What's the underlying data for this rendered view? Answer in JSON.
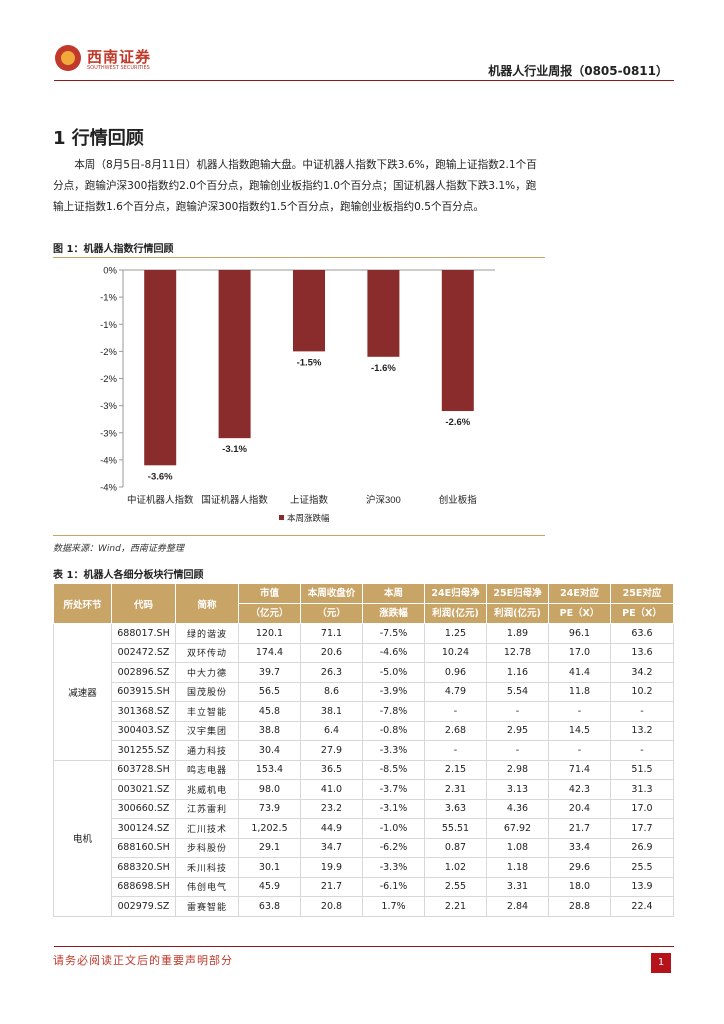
{
  "header": {
    "logo_cn": "西南证券",
    "logo_en": "SOUTHWEST SECURITIES",
    "report_title": "机器人行业周报（0805-0811）"
  },
  "section": {
    "title": "1 行情回顾",
    "paragraph": "本周（8月5日-8月11日）机器人指数跑输大盘。中证机器人指数下跌3.6%，跑输上证指数2.1个百分点，跑输沪深300指数约2.0个百分点，跑输创业板指约1.0个百分点；国证机器人指数下跌3.1%，跑输上证指数1.6个百分点，跑输沪深300指数约1.5个百分点，跑输创业板指约0.5个百分点。"
  },
  "figure": {
    "title": "图 1：机器人指数行情回顾",
    "source": "数据来源：Wind，西南证券整理"
  },
  "chart_data": {
    "type": "bar",
    "categories": [
      "中证机器人指数",
      "国证机器人指数",
      "上证指数",
      "沪深300",
      "创业板指"
    ],
    "values": [
      -3.6,
      -3.1,
      -1.5,
      -1.6,
      -2.6
    ],
    "data_labels": [
      "-3.6%",
      "-3.1%",
      "-1.5%",
      "-1.6%",
      "-2.6%"
    ],
    "series": [
      {
        "name": "本周涨跌幅",
        "values": [
          -3.6,
          -3.1,
          -1.5,
          -1.6,
          -2.6
        ]
      }
    ],
    "ytick_labels": [
      "0%",
      "-1%",
      "-1%",
      "-2%",
      "-2%",
      "-3%",
      "-3%",
      "-4%",
      "-4%"
    ],
    "ylim": [
      -4.0,
      0
    ],
    "title": "",
    "xlabel": "",
    "ylabel": "",
    "grid": false,
    "legend_position": "bottom",
    "bar_color": "#8b2c2c"
  },
  "table": {
    "title": "表 1：机器人各细分板块行情回顾",
    "headers": [
      [
        "所处环节"
      ],
      [
        "代码"
      ],
      [
        "简称"
      ],
      [
        "市值",
        "（亿元）"
      ],
      [
        "本周收盘价",
        "（元）"
      ],
      [
        "本周",
        "涨跌幅"
      ],
      [
        "24E归母净",
        "利润(亿元)"
      ],
      [
        "25E归母净",
        "利润(亿元)"
      ],
      [
        "24E对应",
        "PE（X）"
      ],
      [
        "25E对应",
        "PE（X）"
      ]
    ],
    "groups": [
      {
        "segment": "减速器",
        "rows": [
          [
            "688017.SH",
            "绿的谐波",
            "120.1",
            "71.1",
            "-7.5%",
            "1.25",
            "1.89",
            "96.1",
            "63.6"
          ],
          [
            "002472.SZ",
            "双环传动",
            "174.4",
            "20.6",
            "-4.6%",
            "10.24",
            "12.78",
            "17.0",
            "13.6"
          ],
          [
            "002896.SZ",
            "中大力德",
            "39.7",
            "26.3",
            "-5.0%",
            "0.96",
            "1.16",
            "41.4",
            "34.2"
          ],
          [
            "603915.SH",
            "国茂股份",
            "56.5",
            "8.6",
            "-3.9%",
            "4.79",
            "5.54",
            "11.8",
            "10.2"
          ],
          [
            "301368.SZ",
            "丰立智能",
            "45.8",
            "38.1",
            "-7.8%",
            "-",
            "-",
            "-",
            "-"
          ],
          [
            "300403.SZ",
            "汉宇集团",
            "38.8",
            "6.4",
            "-0.8%",
            "2.68",
            "2.95",
            "14.5",
            "13.2"
          ],
          [
            "301255.SZ",
            "通力科技",
            "30.4",
            "27.9",
            "-3.3%",
            "-",
            "-",
            "-",
            "-"
          ]
        ]
      },
      {
        "segment": "电机",
        "rows": [
          [
            "603728.SH",
            "鸣志电器",
            "153.4",
            "36.5",
            "-8.5%",
            "2.15",
            "2.98",
            "71.4",
            "51.5"
          ],
          [
            "003021.SZ",
            "兆威机电",
            "98.0",
            "41.0",
            "-3.7%",
            "2.31",
            "3.13",
            "42.3",
            "31.3"
          ],
          [
            "300660.SZ",
            "江苏雷利",
            "73.9",
            "23.2",
            "-3.1%",
            "3.63",
            "4.36",
            "20.4",
            "17.0"
          ],
          [
            "300124.SZ",
            "汇川技术",
            "1,202.5",
            "44.9",
            "-1.0%",
            "55.51",
            "67.92",
            "21.7",
            "17.7"
          ],
          [
            "688160.SH",
            "步科股份",
            "29.1",
            "34.7",
            "-6.2%",
            "0.87",
            "1.08",
            "33.4",
            "26.9"
          ],
          [
            "688320.SH",
            "禾川科技",
            "30.1",
            "19.9",
            "-3.3%",
            "1.02",
            "1.18",
            "29.6",
            "25.5"
          ],
          [
            "688698.SH",
            "伟创电气",
            "45.9",
            "21.7",
            "-6.1%",
            "2.55",
            "3.31",
            "18.0",
            "13.9"
          ],
          [
            "002979.SZ",
            "雷赛智能",
            "63.8",
            "20.8",
            "1.7%",
            "2.21",
            "2.84",
            "28.8",
            "22.4"
          ]
        ]
      }
    ]
  },
  "footer": {
    "disclaimer": "请务必阅读正文后的重要声明部分",
    "page": "1"
  }
}
